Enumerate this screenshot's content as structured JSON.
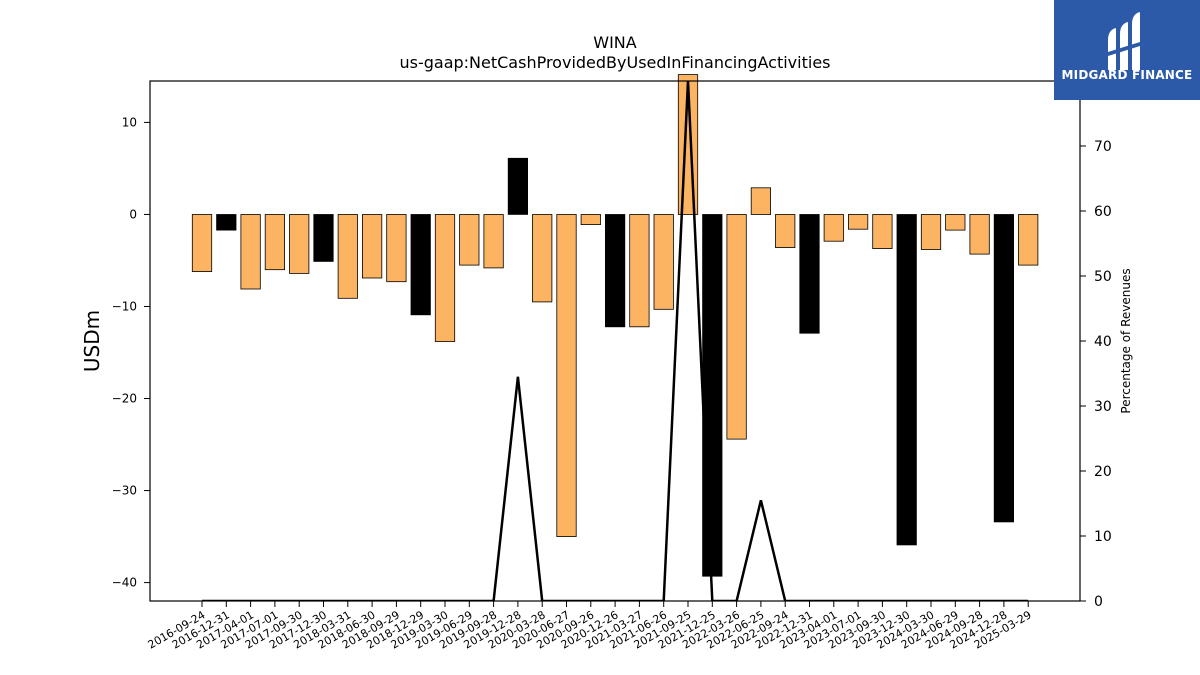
{
  "chart_data": {
    "type": "bar",
    "title": "WINA",
    "subtitle": "us-gaap:NetCashProvidedByUsedInFinancingActivities",
    "ylabel": "USDm",
    "y2label": "Percentage of Revenues",
    "ylim": [
      -42.0,
      14.5
    ],
    "y2lim": [
      0,
      80
    ],
    "yticks": [
      10,
      0,
      -10,
      -20,
      -30,
      -40
    ],
    "y2ticks": [
      0,
      10,
      20,
      30,
      40,
      50,
      60,
      70
    ],
    "categories": [
      "2016-09-24",
      "2016-12-31",
      "2017-04-01",
      "2017-07-01",
      "2017-09-30",
      "2017-12-30",
      "2018-03-31",
      "2018-06-30",
      "2018-09-29",
      "2018-12-29",
      "2019-03-30",
      "2019-06-29",
      "2019-09-28",
      "2019-12-28",
      "2020-03-28",
      "2020-06-27",
      "2020-09-26",
      "2020-12-26",
      "2021-03-27",
      "2021-06-26",
      "2021-09-25",
      "2021-12-25",
      "2022-03-26",
      "2022-06-25",
      "2022-09-24",
      "2022-12-31",
      "2023-04-01",
      "2023-07-01",
      "2023-09-30",
      "2023-12-30",
      "2024-03-30",
      "2024-06-29",
      "2024-09-28",
      "2024-12-28",
      "2025-03-29"
    ],
    "values": [
      -6.2,
      -1.7,
      -8.1,
      -6.0,
      -6.4,
      -5.1,
      -9.1,
      -6.9,
      -7.3,
      -10.9,
      -13.8,
      -5.5,
      -5.8,
      6.1,
      -9.5,
      -35.0,
      -1.1,
      -12.2,
      -12.2,
      -10.3,
      15.2,
      -39.3,
      -24.4,
      2.9,
      -3.6,
      -12.9,
      -2.9,
      -1.6,
      -3.7,
      -35.9,
      -3.8,
      -1.7,
      -4.3,
      -33.4,
      -5.5
    ],
    "bar_colors": [
      "#fdb462",
      "#000000",
      "#fdb462",
      "#fdb462",
      "#fdb462",
      "#000000",
      "#fdb462",
      "#fdb462",
      "#fdb462",
      "#000000",
      "#fdb462",
      "#fdb462",
      "#fdb462",
      "#000000",
      "#fdb462",
      "#fdb462",
      "#fdb462",
      "#000000",
      "#fdb462",
      "#fdb462",
      "#fdb462",
      "#000000",
      "#fdb462",
      "#fdb462",
      "#fdb462",
      "#000000",
      "#fdb462",
      "#fdb462",
      "#fdb462",
      "#000000",
      "#fdb462",
      "#fdb462",
      "#fdb462",
      "#000000",
      "#fdb462"
    ],
    "line_series": {
      "values": [
        0,
        0,
        0,
        0,
        0,
        0,
        0,
        0,
        0,
        0,
        0,
        0,
        0,
        34.5,
        0,
        0,
        0,
        0,
        0,
        0,
        80,
        0,
        0,
        15.5,
        0,
        0,
        0,
        0,
        0,
        0,
        0,
        0,
        0,
        0,
        0
      ],
      "color": "#000000"
    },
    "grid": false,
    "legend": "none"
  },
  "logo": {
    "text": "MIDGARD FINANCE",
    "background": "#2c5aa8"
  }
}
